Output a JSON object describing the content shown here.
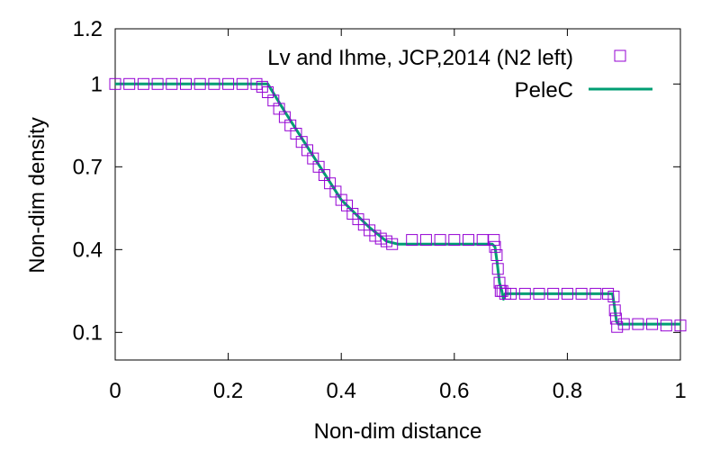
{
  "chart_data": {
    "type": "line",
    "xlabel": "Non-dim distance",
    "ylabel": "Non-dim density",
    "xlim": [
      0,
      1
    ],
    "ylim": [
      0,
      1.2
    ],
    "xticks": [
      {
        "value": 0,
        "label": "0"
      },
      {
        "value": 0.2,
        "label": "0.2"
      },
      {
        "value": 0.4,
        "label": "0.4"
      },
      {
        "value": 0.6,
        "label": "0.6"
      },
      {
        "value": 0.8,
        "label": "0.8"
      },
      {
        "value": 1,
        "label": "1"
      }
    ],
    "yticks": [
      {
        "value": 0.1,
        "label": "0.1"
      },
      {
        "value": 0.4,
        "label": "0.4"
      },
      {
        "value": 0.7,
        "label": "0.7"
      },
      {
        "value": 1,
        "label": "1"
      },
      {
        "value": 1.2,
        "label": "1.2"
      }
    ],
    "legend_position": "top-right",
    "series": [
      {
        "name": "Lv and Ihme, JCP,2014 (N2 left)",
        "style": "open-square-markers",
        "color": "#9400d3",
        "x": [
          0.0,
          0.025,
          0.05,
          0.075,
          0.1,
          0.125,
          0.15,
          0.175,
          0.2,
          0.225,
          0.25,
          0.26,
          0.27,
          0.28,
          0.29,
          0.3,
          0.31,
          0.32,
          0.33,
          0.34,
          0.35,
          0.36,
          0.37,
          0.38,
          0.39,
          0.4,
          0.41,
          0.42,
          0.43,
          0.44,
          0.45,
          0.46,
          0.47,
          0.48,
          0.49,
          0.525,
          0.55,
          0.575,
          0.6,
          0.625,
          0.65,
          0.67,
          0.672,
          0.675,
          0.677,
          0.68,
          0.682,
          0.685,
          0.69,
          0.7,
          0.725,
          0.75,
          0.775,
          0.8,
          0.825,
          0.85,
          0.872,
          0.882,
          0.884,
          0.886,
          0.888,
          0.9,
          0.925,
          0.95,
          0.975,
          1.0
        ],
        "y": [
          1.0,
          1.0,
          1.0,
          1.0,
          1.0,
          1.0,
          1.0,
          1.0,
          1.0,
          1.0,
          1.0,
          0.99,
          0.97,
          0.94,
          0.91,
          0.88,
          0.85,
          0.82,
          0.79,
          0.76,
          0.73,
          0.7,
          0.67,
          0.64,
          0.61,
          0.58,
          0.56,
          0.53,
          0.51,
          0.49,
          0.47,
          0.45,
          0.44,
          0.43,
          0.42,
          0.435,
          0.435,
          0.435,
          0.435,
          0.435,
          0.435,
          0.435,
          0.41,
          0.38,
          0.33,
          0.28,
          0.25,
          0.25,
          0.24,
          0.24,
          0.24,
          0.24,
          0.24,
          0.24,
          0.24,
          0.24,
          0.24,
          0.23,
          0.18,
          0.15,
          0.12,
          0.13,
          0.13,
          0.13,
          0.125,
          0.125
        ]
      },
      {
        "name": "PeleC",
        "style": "line",
        "color": "#009e73",
        "x": [
          0.0,
          0.26,
          0.27,
          0.3,
          0.35,
          0.4,
          0.45,
          0.48,
          0.5,
          0.55,
          0.6,
          0.65,
          0.667,
          0.672,
          0.676,
          0.68,
          0.684,
          0.687,
          0.69,
          0.7,
          0.75,
          0.8,
          0.85,
          0.88,
          0.883,
          0.887,
          0.89,
          0.95,
          1.0
        ],
        "y": [
          1.0,
          1.0,
          1.0,
          0.9,
          0.74,
          0.58,
          0.48,
          0.43,
          0.42,
          0.42,
          0.42,
          0.42,
          0.42,
          0.41,
          0.35,
          0.28,
          0.25,
          0.22,
          0.24,
          0.24,
          0.24,
          0.24,
          0.24,
          0.24,
          0.2,
          0.14,
          0.13,
          0.13,
          0.13
        ]
      }
    ],
    "grid": false
  }
}
